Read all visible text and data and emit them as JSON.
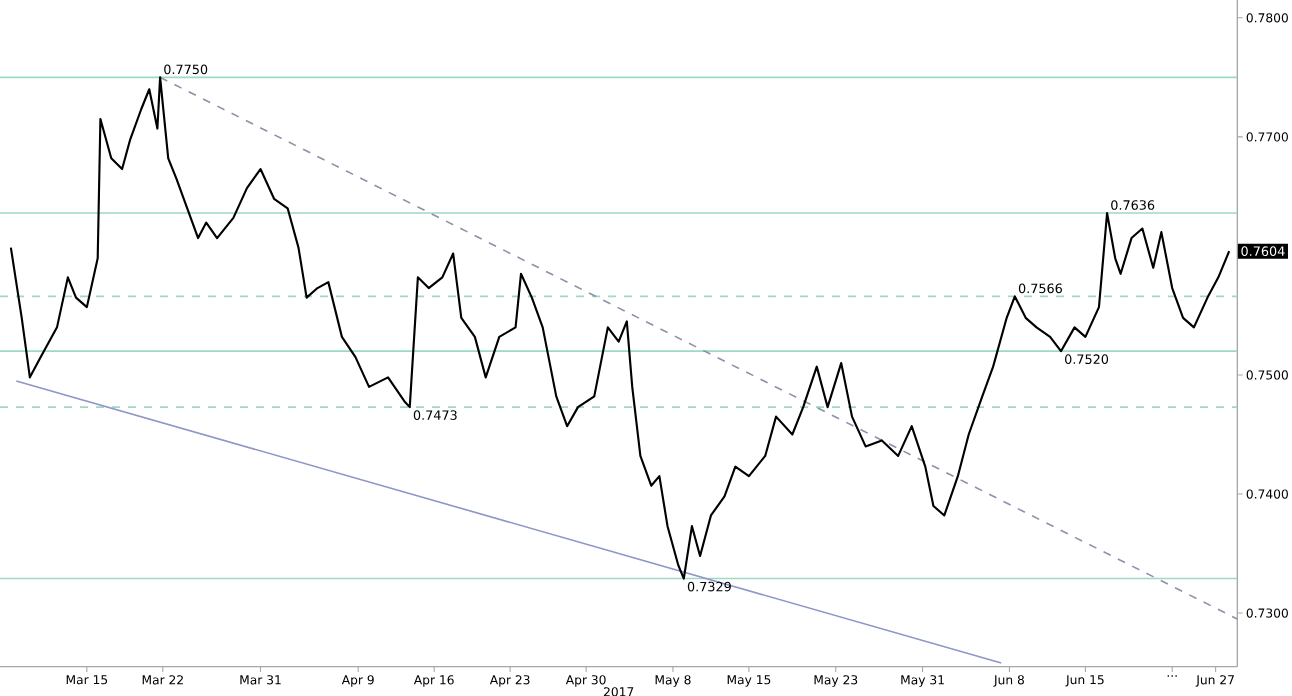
{
  "chart_data": {
    "type": "line",
    "xlabel": "2017",
    "xlim": [
      "2017-03-07",
      "2017-06-29"
    ],
    "xticks": [
      {
        "value": "2017-03-15",
        "label": "Mar 15"
      },
      {
        "value": "2017-03-22",
        "label": "Mar 22"
      },
      {
        "value": "2017-03-31",
        "label": "Mar 31"
      },
      {
        "value": "2017-04-09",
        "label": "Apr 9"
      },
      {
        "value": "2017-04-16",
        "label": "Apr 16"
      },
      {
        "value": "2017-04-23",
        "label": "Apr 23"
      },
      {
        "value": "2017-04-30",
        "label": "Apr 30"
      },
      {
        "value": "2017-05-08",
        "label": "May 8"
      },
      {
        "value": "2017-05-15",
        "label": "May 15"
      },
      {
        "value": "2017-05-23",
        "label": "May 23"
      },
      {
        "value": "2017-05-31",
        "label": "May 31"
      },
      {
        "value": "2017-06-08",
        "label": "Jun 8"
      },
      {
        "value": "2017-06-15",
        "label": "Jun 15"
      },
      {
        "value": "2017-06-23",
        "label": "..."
      },
      {
        "value": "2017-06-27",
        "label": "Jun 27"
      }
    ],
    "ylim": [
      0.7255,
      0.7815
    ],
    "yticks": [
      {
        "value": 0.73,
        "label": "0.7300"
      },
      {
        "value": 0.74,
        "label": "0.7400"
      },
      {
        "value": 0.75,
        "label": "0.7500"
      },
      {
        "value": 0.76,
        "label": null
      },
      {
        "value": 0.77,
        "label": "0.7700"
      },
      {
        "value": 0.78,
        "label": "0.7800"
      }
    ],
    "series": [
      {
        "color": "#000000",
        "x": [
          "2017-03-08",
          "2017-03-09",
          "2017-03-09T18:00",
          "2017-03-10T18:00",
          "2017-03-12T06:00",
          "2017-03-13T06:00",
          "2017-03-14",
          "2017-03-15",
          "2017-03-16",
          "2017-03-16T06:00",
          "2017-03-17T06:00",
          "2017-03-18T06:00",
          "2017-03-19",
          "2017-03-20",
          "2017-03-20T18:00",
          "2017-03-21T12:00",
          "2017-03-21T18:00",
          "2017-03-22T12:00",
          "2017-03-23T06:00",
          "2017-03-24T06:00",
          "2017-03-25T06:00",
          "2017-03-26",
          "2017-03-27",
          "2017-03-28T12:00",
          "2017-03-29T18:00",
          "2017-03-31",
          "2017-04-01T06:00",
          "2017-04-02T12:00",
          "2017-04-03T12:00",
          "2017-04-04T06:00",
          "2017-04-05T06:00",
          "2017-04-06T06:00",
          "2017-04-07T12:00",
          "2017-04-08T18:00",
          "2017-04-10",
          "2017-04-11T18:00",
          "2017-04-13T06:00",
          "2017-04-13T18:00",
          "2017-04-14T12:00",
          "2017-04-15T12:00",
          "2017-04-16T18:00",
          "2017-04-17T18:00",
          "2017-04-18T12:00",
          "2017-04-19T18:00",
          "2017-04-20T18:00",
          "2017-04-22",
          "2017-04-23T12:00",
          "2017-04-24",
          "2017-04-25",
          "2017-04-26",
          "2017-04-27T06:00",
          "2017-04-28T06:00",
          "2017-04-29T06:00",
          "2017-04-30T18:00",
          "2017-05-02",
          "2017-05-03",
          "2017-05-03T18:00",
          "2017-05-04T06:00",
          "2017-05-05",
          "2017-05-06",
          "2017-05-06T18:00",
          "2017-05-07T12:00",
          "2017-05-08T12:00",
          "2017-05-09",
          "2017-05-09T18:00",
          "2017-05-10T12:00",
          "2017-05-11T12:00",
          "2017-05-12T18:00",
          "2017-05-13T18:00",
          "2017-05-15",
          "2017-05-16T12:00",
          "2017-05-17T12:00",
          "2017-05-19",
          "2017-05-20",
          "2017-05-21T06:00",
          "2017-05-22T06:00",
          "2017-05-23T12:00",
          "2017-05-24T12:00",
          "2017-05-25T18:00",
          "2017-05-27T06:00",
          "2017-05-28T18:00",
          "2017-05-30",
          "2017-05-31T06:00",
          "2017-06-01",
          "2017-06-02",
          "2017-06-03T06:00",
          "2017-06-04T06:00",
          "2017-06-05T12:00",
          "2017-06-06T12:00",
          "2017-06-07T18:00",
          "2017-06-08T12:00",
          "2017-06-09T12:00",
          "2017-06-10T12:00",
          "2017-06-11T18:00",
          "2017-06-12T18:00",
          "2017-06-14",
          "2017-06-15",
          "2017-06-16T06:00",
          "2017-06-17",
          "2017-06-17T18:00",
          "2017-06-18T06:00",
          "2017-06-19T06:00",
          "2017-06-20T06:00",
          "2017-06-21T06:00",
          "2017-06-22",
          "2017-06-23",
          "2017-06-24",
          "2017-06-25",
          "2017-06-26T06:00",
          "2017-06-27T06:00",
          "2017-06-28T06:00"
        ],
        "values": [
          0.7607,
          0.7548,
          0.7498,
          0.7515,
          0.754,
          0.7582,
          0.7565,
          0.7557,
          0.7598,
          0.7715,
          0.7682,
          0.7673,
          0.7698,
          0.7723,
          0.774,
          0.7707,
          0.775,
          0.7682,
          0.7665,
          0.764,
          0.7615,
          0.7628,
          0.7615,
          0.7632,
          0.7657,
          0.7673,
          0.7648,
          0.764,
          0.7607,
          0.7565,
          0.7573,
          0.7578,
          0.7532,
          0.7515,
          0.749,
          0.7498,
          0.7478,
          0.7473,
          0.7582,
          0.7573,
          0.7582,
          0.7602,
          0.7548,
          0.7532,
          0.7498,
          0.7532,
          0.754,
          0.7585,
          0.7565,
          0.754,
          0.7482,
          0.7457,
          0.7473,
          0.7482,
          0.754,
          0.7528,
          0.7545,
          0.749,
          0.7432,
          0.7407,
          0.7415,
          0.7373,
          0.734,
          0.7329,
          0.7373,
          0.7348,
          0.7382,
          0.7398,
          0.7423,
          0.7415,
          0.7432,
          0.7465,
          0.745,
          0.7473,
          0.7507,
          0.7473,
          0.751,
          0.7465,
          0.744,
          0.7445,
          0.7432,
          0.7457,
          0.7423,
          0.739,
          0.7382,
          0.7415,
          0.745,
          0.7482,
          0.7507,
          0.7548,
          0.7566,
          0.7548,
          0.754,
          0.7532,
          0.752,
          0.754,
          0.7532,
          0.7557,
          0.7636,
          0.7598,
          0.7585,
          0.7615,
          0.7623,
          0.759,
          0.762,
          0.7573,
          0.7548,
          0.754,
          0.7565,
          0.7582,
          0.7604
        ]
      },
      {
        "color": "#8a93a8",
        "line_style": "dashed",
        "x": [
          "2017-03-21T18:00",
          "2017-06-29"
        ],
        "values": [
          0.775,
          0.7295
        ]
      },
      {
        "color": "#8c96c8",
        "line_style": "solid",
        "x": [
          "2017-03-08T12:00",
          "2017-06-07T06:00"
        ],
        "values": [
          0.7495,
          0.7258
        ]
      }
    ],
    "ref_lines": [
      {
        "axis": "y",
        "value": 0.775,
        "color": "#9ed9c4",
        "line_style": "solid"
      },
      {
        "axis": "y",
        "value": 0.7636,
        "color": "#9ed9c4",
        "line_style": "solid"
      },
      {
        "axis": "y",
        "value": 0.7566,
        "color": "#9ed9c4",
        "line_style": "dashed"
      },
      {
        "axis": "y",
        "value": 0.752,
        "color": "#9ed9c4",
        "line_style": "solid"
      },
      {
        "axis": "y",
        "value": 0.7473,
        "color": "#9ed9c4",
        "line_style": "dashed"
      },
      {
        "axis": "y",
        "value": 0.7329,
        "color": "#9ed9c4",
        "line_style": "solid"
      }
    ],
    "annotations": [
      {
        "text": "0.7750",
        "x": "2017-03-21T18:00",
        "y": 0.775
      },
      {
        "text": "0.7473",
        "x": "2017-04-13T18:00",
        "y": 0.7473
      },
      {
        "text": "0.7329",
        "x": "2017-05-09",
        "y": 0.7329
      },
      {
        "text": "0.7566",
        "x": "2017-06-08T12:00",
        "y": 0.7566
      },
      {
        "text": "0.7520",
        "x": "2017-06-12T18:00",
        "y": 0.752
      },
      {
        "text": "0.7636",
        "x": "2017-06-17",
        "y": 0.7636
      },
      {
        "text": "0.7604",
        "x": "2017-06-29",
        "y": 0.7604
      }
    ]
  }
}
